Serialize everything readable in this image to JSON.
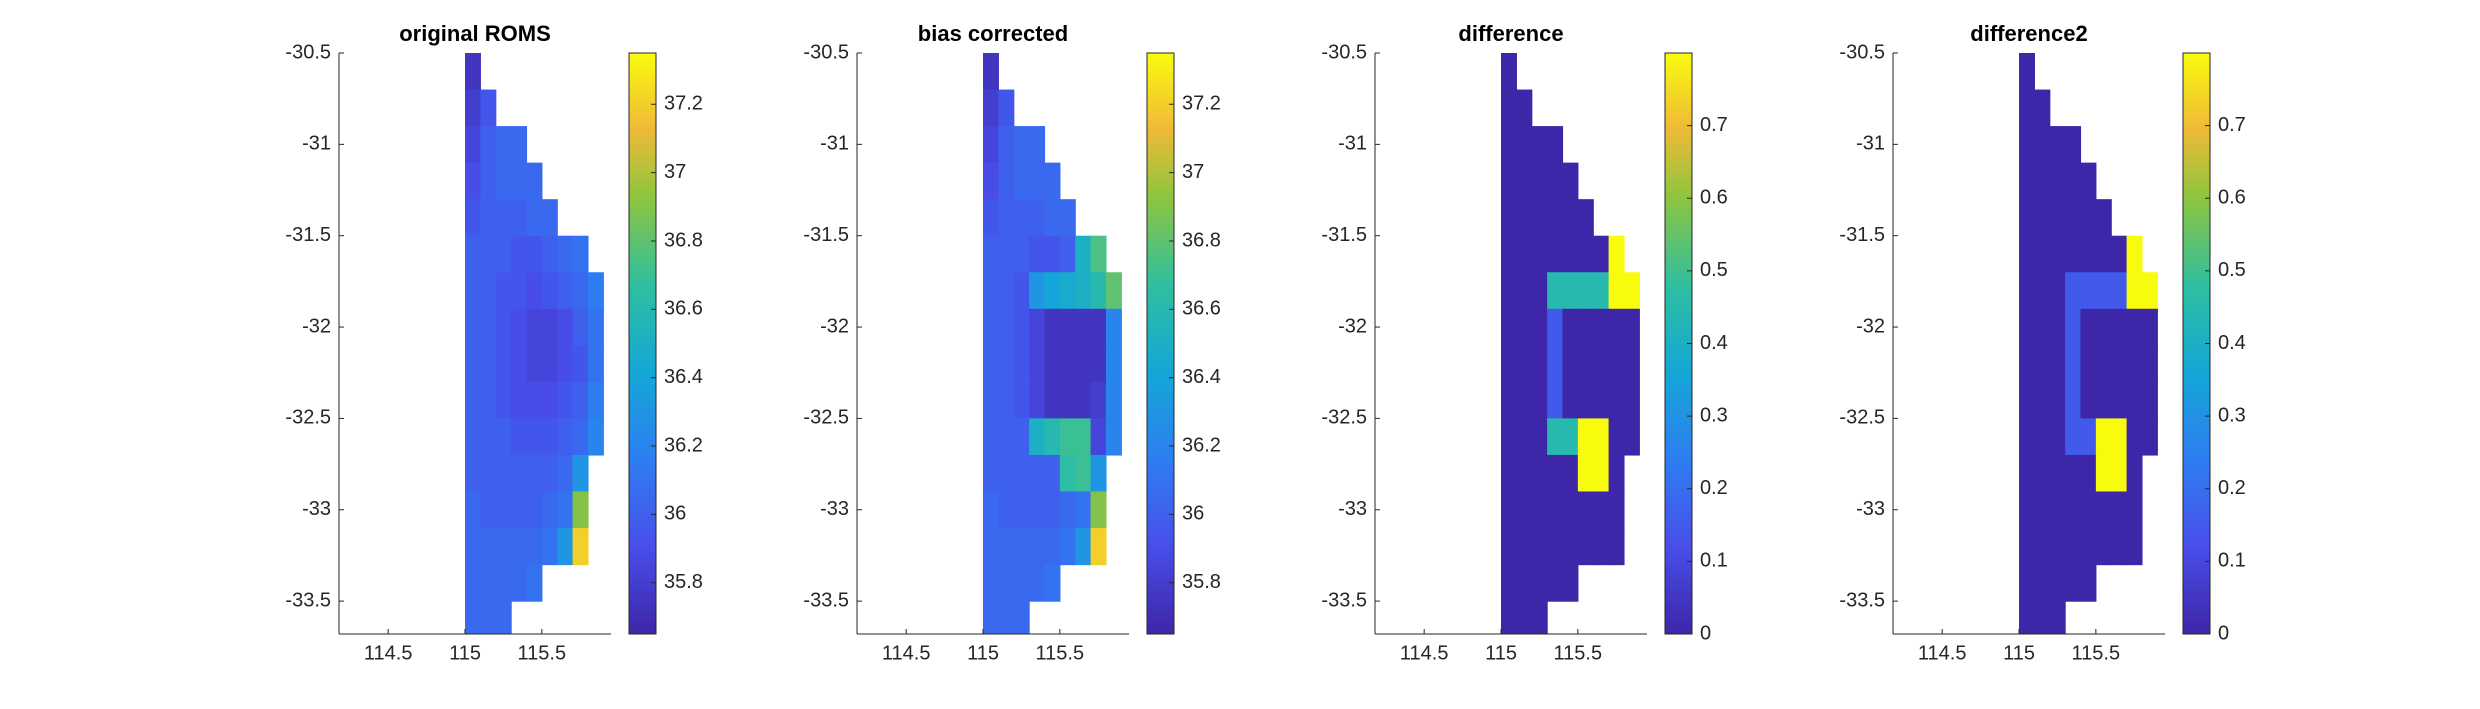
{
  "chart_data": [
    {
      "type": "heatmap",
      "title": "original ROMS",
      "colormap": "parula",
      "x": [
        115.0,
        115.1,
        115.2,
        115.3,
        115.4,
        115.5,
        115.6,
        115.7,
        115.8,
        115.9
      ],
      "y": [
        -30.5,
        -30.7,
        -30.9,
        -31.1,
        -31.3,
        -31.5,
        -31.7,
        -31.9,
        -32.1,
        -32.3,
        -32.5,
        -32.7,
        -32.9,
        -33.1,
        -33.3,
        -33.5,
        -33.7
      ],
      "values": [
        [
          35.75,
          null,
          null,
          null,
          null,
          null,
          null,
          null,
          null
        ],
        [
          35.8,
          35.95,
          null,
          null,
          null,
          null,
          null,
          null,
          null
        ],
        [
          35.85,
          36.0,
          36.05,
          36.05,
          null,
          null,
          null,
          null,
          null
        ],
        [
          35.9,
          36.0,
          36.05,
          36.05,
          36.05,
          null,
          null,
          null,
          null
        ],
        [
          35.95,
          36.0,
          36.0,
          36.0,
          36.05,
          36.05,
          null,
          null,
          null
        ],
        [
          36.0,
          36.0,
          36.0,
          35.95,
          35.95,
          36.0,
          36.05,
          36.1,
          null
        ],
        [
          36.0,
          36.0,
          35.95,
          35.95,
          35.9,
          35.95,
          36.0,
          36.05,
          36.15
        ],
        [
          36.0,
          36.0,
          35.95,
          35.9,
          35.85,
          35.85,
          35.9,
          36.0,
          36.1
        ],
        [
          36.0,
          36.0,
          35.95,
          35.9,
          35.85,
          35.85,
          35.9,
          35.95,
          36.1
        ],
        [
          36.0,
          36.0,
          35.95,
          35.9,
          35.9,
          35.9,
          35.95,
          36.0,
          36.15
        ],
        [
          36.0,
          36.0,
          36.0,
          35.95,
          35.95,
          35.95,
          36.0,
          36.05,
          36.2
        ],
        [
          36.0,
          36.0,
          36.0,
          36.0,
          36.0,
          36.0,
          36.05,
          36.3,
          null
        ],
        [
          36.05,
          36.0,
          36.0,
          36.0,
          36.0,
          36.05,
          36.1,
          36.9,
          null
        ],
        [
          36.05,
          36.05,
          36.05,
          36.05,
          36.05,
          36.1,
          36.3,
          37.2,
          null
        ],
        [
          36.05,
          36.05,
          36.05,
          36.05,
          36.1,
          null,
          null,
          null,
          null
        ],
        [
          36.05,
          36.05,
          36.05,
          null,
          null,
          null,
          null,
          null,
          null
        ]
      ],
      "xlim": [
        114.18,
        115.95
      ],
      "ylim": [
        -33.68,
        -30.5
      ],
      "xticks": [
        114.5,
        115,
        115.5
      ],
      "yticks": [
        -30.5,
        -31,
        -31.5,
        -32,
        -32.5,
        -33,
        -33.5
      ],
      "clim": [
        35.65,
        37.35
      ],
      "cticks": [
        35.8,
        36,
        36.2,
        36.4,
        36.6,
        36.8,
        37,
        37.2
      ]
    },
    {
      "type": "heatmap",
      "title": "bias corrected",
      "colormap": "parula",
      "x": [
        115.0,
        115.1,
        115.2,
        115.3,
        115.4,
        115.5,
        115.6,
        115.7,
        115.8,
        115.9
      ],
      "y": [
        -30.5,
        -30.7,
        -30.9,
        -31.1,
        -31.3,
        -31.5,
        -31.7,
        -31.9,
        -32.1,
        -32.3,
        -32.5,
        -32.7,
        -32.9,
        -33.1,
        -33.3,
        -33.5,
        -33.7
      ],
      "values": [
        [
          35.75,
          null,
          null,
          null,
          null,
          null,
          null,
          null,
          null
        ],
        [
          35.8,
          35.95,
          null,
          null,
          null,
          null,
          null,
          null,
          null
        ],
        [
          35.85,
          36.0,
          36.05,
          36.05,
          null,
          null,
          null,
          null,
          null
        ],
        [
          35.9,
          36.0,
          36.05,
          36.05,
          36.05,
          null,
          null,
          null,
          null
        ],
        [
          35.95,
          36.0,
          36.0,
          36.0,
          36.05,
          36.05,
          null,
          null,
          null
        ],
        [
          36.0,
          36.0,
          36.0,
          35.95,
          35.95,
          36.0,
          36.5,
          36.75,
          null
        ],
        [
          36.0,
          36.0,
          35.95,
          36.3,
          36.4,
          36.45,
          36.5,
          36.6,
          36.8
        ],
        [
          36.0,
          36.0,
          35.95,
          35.85,
          35.75,
          35.75,
          35.75,
          35.75,
          36.2
        ],
        [
          36.0,
          36.0,
          35.95,
          35.85,
          35.75,
          35.75,
          35.75,
          35.75,
          36.2
        ],
        [
          36.0,
          36.0,
          35.95,
          35.85,
          35.75,
          35.75,
          35.75,
          35.8,
          36.2
        ],
        [
          36.0,
          36.0,
          36.0,
          36.5,
          36.6,
          36.7,
          36.7,
          35.85,
          36.2
        ],
        [
          36.0,
          36.0,
          36.0,
          36.0,
          36.0,
          36.65,
          36.7,
          36.3,
          null
        ],
        [
          36.05,
          36.0,
          36.0,
          36.0,
          36.0,
          36.05,
          36.1,
          36.9,
          null
        ],
        [
          36.05,
          36.05,
          36.05,
          36.05,
          36.05,
          36.1,
          36.3,
          37.2,
          null
        ],
        [
          36.05,
          36.05,
          36.05,
          36.05,
          36.1,
          null,
          null,
          null,
          null
        ],
        [
          36.05,
          36.05,
          36.05,
          null,
          null,
          null,
          null,
          null,
          null
        ]
      ],
      "xlim": [
        114.18,
        115.95
      ],
      "ylim": [
        -33.68,
        -30.5
      ],
      "xticks": [
        114.5,
        115,
        115.5
      ],
      "yticks": [
        -30.5,
        -31,
        -31.5,
        -32,
        -32.5,
        -33,
        -33.5
      ],
      "clim": [
        35.65,
        37.35
      ],
      "cticks": [
        35.8,
        36,
        36.2,
        36.4,
        36.6,
        36.8,
        37,
        37.2
      ]
    },
    {
      "type": "heatmap",
      "title": "difference",
      "colormap": "parula",
      "x": [
        115.0,
        115.1,
        115.2,
        115.3,
        115.4,
        115.5,
        115.6,
        115.7,
        115.8,
        115.9
      ],
      "y": [
        -30.5,
        -30.7,
        -30.9,
        -31.1,
        -31.3,
        -31.5,
        -31.7,
        -31.9,
        -32.1,
        -32.3,
        -32.5,
        -32.7,
        -32.9,
        -33.1,
        -33.3,
        -33.5,
        -33.7
      ],
      "values": [
        [
          0,
          null,
          null,
          null,
          null,
          null,
          null,
          null,
          null
        ],
        [
          0,
          0,
          null,
          null,
          null,
          null,
          null,
          null,
          null
        ],
        [
          0,
          0,
          0,
          0,
          null,
          null,
          null,
          null,
          null
        ],
        [
          0,
          0,
          0,
          0,
          0,
          null,
          null,
          null,
          null
        ],
        [
          0,
          0,
          0,
          0,
          0,
          0,
          null,
          null,
          null
        ],
        [
          0,
          0,
          0,
          0,
          0,
          0,
          0,
          0.8,
          null
        ],
        [
          0,
          0,
          0,
          0.45,
          0.45,
          0.45,
          0.45,
          0.8,
          0.8
        ],
        [
          0,
          0,
          0,
          0.15,
          0,
          0,
          0,
          0,
          0
        ],
        [
          0,
          0,
          0,
          0.15,
          0,
          0,
          0,
          0,
          0
        ],
        [
          0,
          0,
          0,
          0.15,
          0,
          0,
          0,
          0,
          0
        ],
        [
          0,
          0,
          0,
          0.45,
          0.45,
          0.8,
          0.8,
          0,
          0
        ],
        [
          0,
          0,
          0,
          0,
          0,
          0.8,
          0.8,
          0,
          null
        ],
        [
          0,
          0,
          0,
          0,
          0,
          0,
          0,
          0,
          null
        ],
        [
          0,
          0,
          0,
          0,
          0,
          0,
          0,
          0,
          null
        ],
        [
          0,
          0,
          0,
          0,
          0,
          null,
          null,
          null,
          null
        ],
        [
          0,
          0,
          0,
          null,
          null,
          null,
          null,
          null,
          null
        ]
      ],
      "xlim": [
        114.18,
        115.95
      ],
      "ylim": [
        -33.68,
        -30.5
      ],
      "xticks": [
        114.5,
        115,
        115.5
      ],
      "yticks": [
        -30.5,
        -31,
        -31.5,
        -32,
        -32.5,
        -33,
        -33.5
      ],
      "clim": [
        0,
        0.8
      ],
      "cticks": [
        0,
        0.1,
        0.2,
        0.3,
        0.4,
        0.5,
        0.6,
        0.7
      ]
    },
    {
      "type": "heatmap",
      "title": "difference2",
      "colormap": "parula",
      "x": [
        115.0,
        115.1,
        115.2,
        115.3,
        115.4,
        115.5,
        115.6,
        115.7,
        115.8,
        115.9
      ],
      "y": [
        -30.5,
        -30.7,
        -30.9,
        -31.1,
        -31.3,
        -31.5,
        -31.7,
        -31.9,
        -32.1,
        -32.3,
        -32.5,
        -32.7,
        -32.9,
        -33.1,
        -33.3,
        -33.5,
        -33.7
      ],
      "values": [
        [
          0,
          null,
          null,
          null,
          null,
          null,
          null,
          null,
          null
        ],
        [
          0,
          0,
          null,
          null,
          null,
          null,
          null,
          null,
          null
        ],
        [
          0,
          0,
          0,
          0,
          null,
          null,
          null,
          null,
          null
        ],
        [
          0,
          0,
          0,
          0,
          0,
          null,
          null,
          null,
          null
        ],
        [
          0,
          0,
          0,
          0,
          0,
          0,
          null,
          null,
          null
        ],
        [
          0,
          0,
          0,
          0,
          0,
          0,
          0,
          0.8,
          null
        ],
        [
          0,
          0,
          0,
          0.15,
          0.15,
          0.15,
          0.15,
          0.8,
          0.8
        ],
        [
          0,
          0,
          0,
          0.15,
          0,
          0,
          0,
          0,
          0
        ],
        [
          0,
          0,
          0,
          0.15,
          0,
          0,
          0,
          0,
          0
        ],
        [
          0,
          0,
          0,
          0.15,
          0,
          0,
          0,
          0,
          0
        ],
        [
          0,
          0,
          0,
          0.15,
          0.15,
          0.8,
          0.8,
          0,
          0
        ],
        [
          0,
          0,
          0,
          0,
          0,
          0.8,
          0.8,
          0,
          null
        ],
        [
          0,
          0,
          0,
          0,
          0,
          0,
          0,
          0,
          null
        ],
        [
          0,
          0,
          0,
          0,
          0,
          0,
          0,
          0,
          null
        ],
        [
          0,
          0,
          0,
          0,
          0,
          null,
          null,
          null,
          null
        ],
        [
          0,
          0,
          0,
          null,
          null,
          null,
          null,
          null,
          null
        ]
      ],
      "xlim": [
        114.18,
        115.95
      ],
      "ylim": [
        -33.68,
        -30.5
      ],
      "xticks": [
        114.5,
        115,
        115.5
      ],
      "yticks": [
        -30.5,
        -31,
        -31.5,
        -32,
        -32.5,
        -33,
        -33.5
      ],
      "clim": [
        0,
        0.8
      ],
      "cticks": [
        0,
        0.1,
        0.2,
        0.3,
        0.4,
        0.5,
        0.6,
        0.7
      ]
    }
  ]
}
